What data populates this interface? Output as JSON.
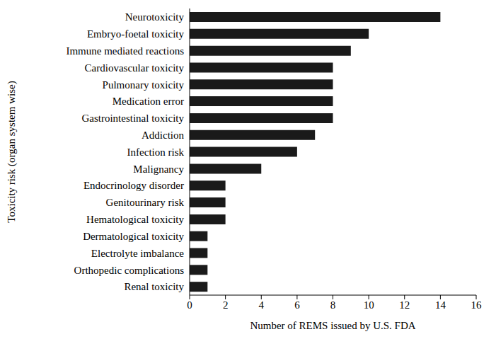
{
  "chart_data": {
    "type": "bar",
    "orientation": "horizontal",
    "categories": [
      "Neurotoxicity",
      "Embryo-foetal toxicity",
      "Immune mediated reactions",
      "Cardiovascular toxicity",
      "Pulmonary toxicity",
      "Medication error",
      "Gastrointestinal toxicity",
      "Addiction",
      "Infection risk",
      "Malignancy",
      "Endocrinology disorder",
      "Genitourinary risk",
      "Hematological toxicity",
      "Dermatological toxicity",
      "Electrolyte imbalance",
      "Orthopedic complications",
      "Renal toxicity"
    ],
    "values": [
      14,
      10,
      9,
      8,
      8,
      8,
      8,
      7,
      6,
      4,
      2,
      2,
      2,
      1,
      1,
      1,
      1
    ],
    "color": "#1a1a1a",
    "xlabel": "Number of REMS issued by U.S. FDA",
    "ylabel": "Toxicity risk (organ system wise)",
    "xlim": [
      0,
      16
    ],
    "xticks": [
      0,
      2,
      4,
      6,
      8,
      10,
      12,
      14,
      16
    ],
    "grid": false
  }
}
